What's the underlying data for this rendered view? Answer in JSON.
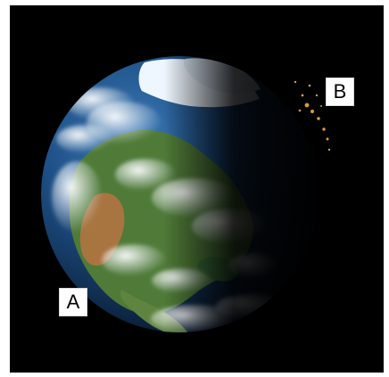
{
  "labels": {
    "a": "A",
    "b": "B"
  },
  "colors": {
    "space": "#000000",
    "ocean": "#1d4f85",
    "land_green": "#4f7a38",
    "land_desert": "#a8743f",
    "ice": "#eef6ff",
    "clouds": "#f4f8fb",
    "city_lights": "#d99b3a"
  }
}
